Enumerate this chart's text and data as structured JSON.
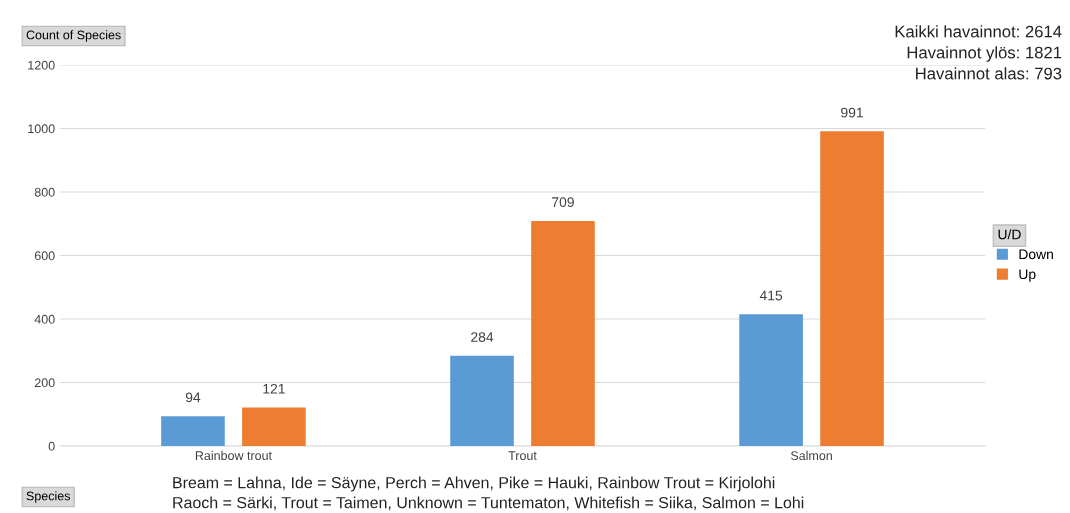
{
  "chart_data": {
    "type": "bar",
    "categories": [
      "Rainbow trout",
      "Trout",
      "Salmon"
    ],
    "series": [
      {
        "name": "Down",
        "color": "#5b9bd5",
        "values": [
          94,
          284,
          415
        ]
      },
      {
        "name": "Up",
        "color": "#ed7d31",
        "values": [
          121,
          709,
          991
        ]
      }
    ],
    "ylabel": "Count of Species",
    "xlabel": "Species",
    "legend_title": "U/D",
    "ylim": [
      0,
      1200
    ],
    "yticks": [
      0,
      200,
      400,
      600,
      800,
      1000,
      1200
    ],
    "grid": "y",
    "legend": "right",
    "data_labels": true,
    "annotations": [
      "Kaikki havainnot: 2614",
      "Havainnot ylös: 1821",
      "Havainnot alas: 793",
      "Bream = Lahna, Ide = Säyne, Perch = Ahven, Pike = Hauki, Rainbow Trout = Kirjolohi",
      "Raoch = Särki, Trout = Taimen, Unknown = Tuntematon, Whitefish = Siika, Salmon = Lohi"
    ]
  }
}
